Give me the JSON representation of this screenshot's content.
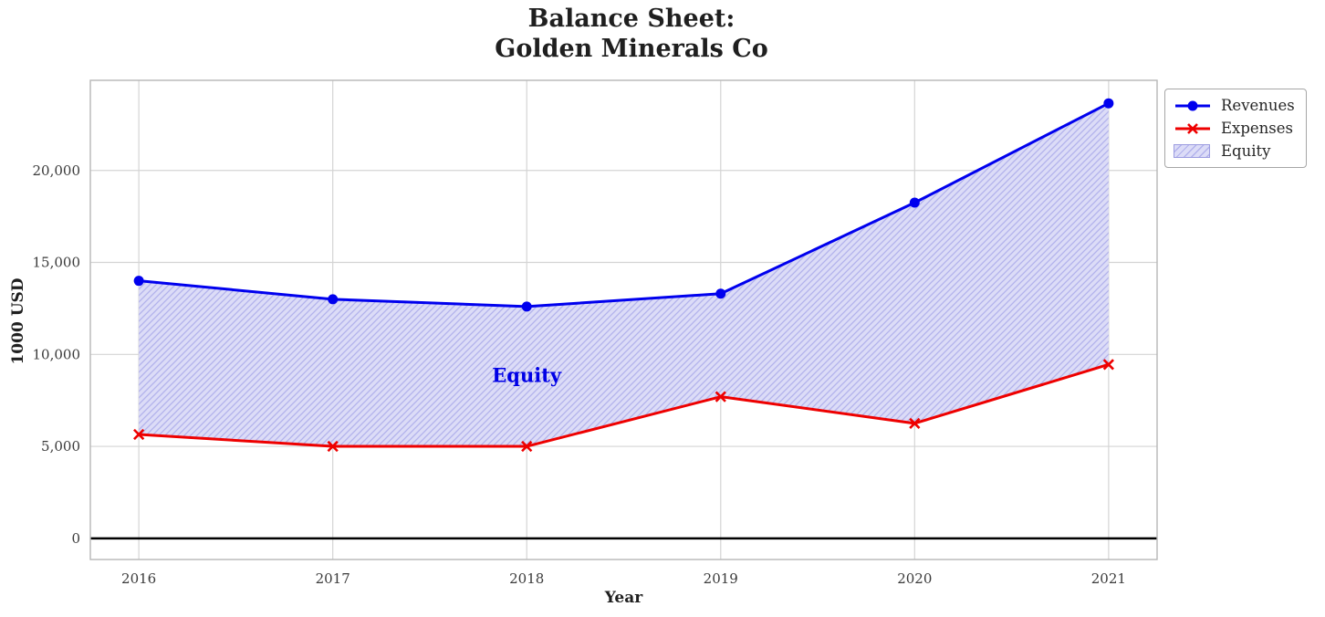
{
  "chart_data": {
    "type": "line",
    "title": "Balance Sheet:\nGolden Minerals Co",
    "title_lines": [
      "Balance Sheet:",
      "Golden Minerals Co"
    ],
    "xlabel": "Year",
    "ylabel": "1000 USD",
    "x": [
      2016,
      2017,
      2018,
      2019,
      2020,
      2021
    ],
    "series": [
      {
        "name": "Revenues",
        "color": "#0000ee",
        "marker": "circle",
        "values": [
          14000,
          13000,
          12600,
          13300,
          18250,
          23650
        ]
      },
      {
        "name": "Expenses",
        "color": "#ee0000",
        "marker": "x",
        "values": [
          5650,
          5000,
          5000,
          7700,
          6250,
          9450
        ]
      }
    ],
    "fill_between": {
      "name": "Equity",
      "between": [
        "Revenues",
        "Expenses"
      ],
      "face_color": "#dcdcf7",
      "hatch_color": "#b2b2ec",
      "hatch": "//",
      "annotation": {
        "text": "Equity",
        "x": 2018,
        "y": 8850,
        "color": "#0000e6"
      }
    },
    "xlim": [
      2015.75,
      2021.25
    ],
    "ylim": [
      -1150,
      24900
    ],
    "xticks": [
      2016,
      2017,
      2018,
      2019,
      2020,
      2021
    ],
    "yticks": [
      0,
      5000,
      10000,
      15000,
      20000
    ],
    "ytick_labels": [
      "0",
      "5,000",
      "10,000",
      "15,000",
      "20,000"
    ],
    "grid": true,
    "zero_line_color": "#000000",
    "legend": {
      "position": "outside-upper-right",
      "items": [
        "Revenues",
        "Expenses",
        "Equity"
      ]
    }
  }
}
